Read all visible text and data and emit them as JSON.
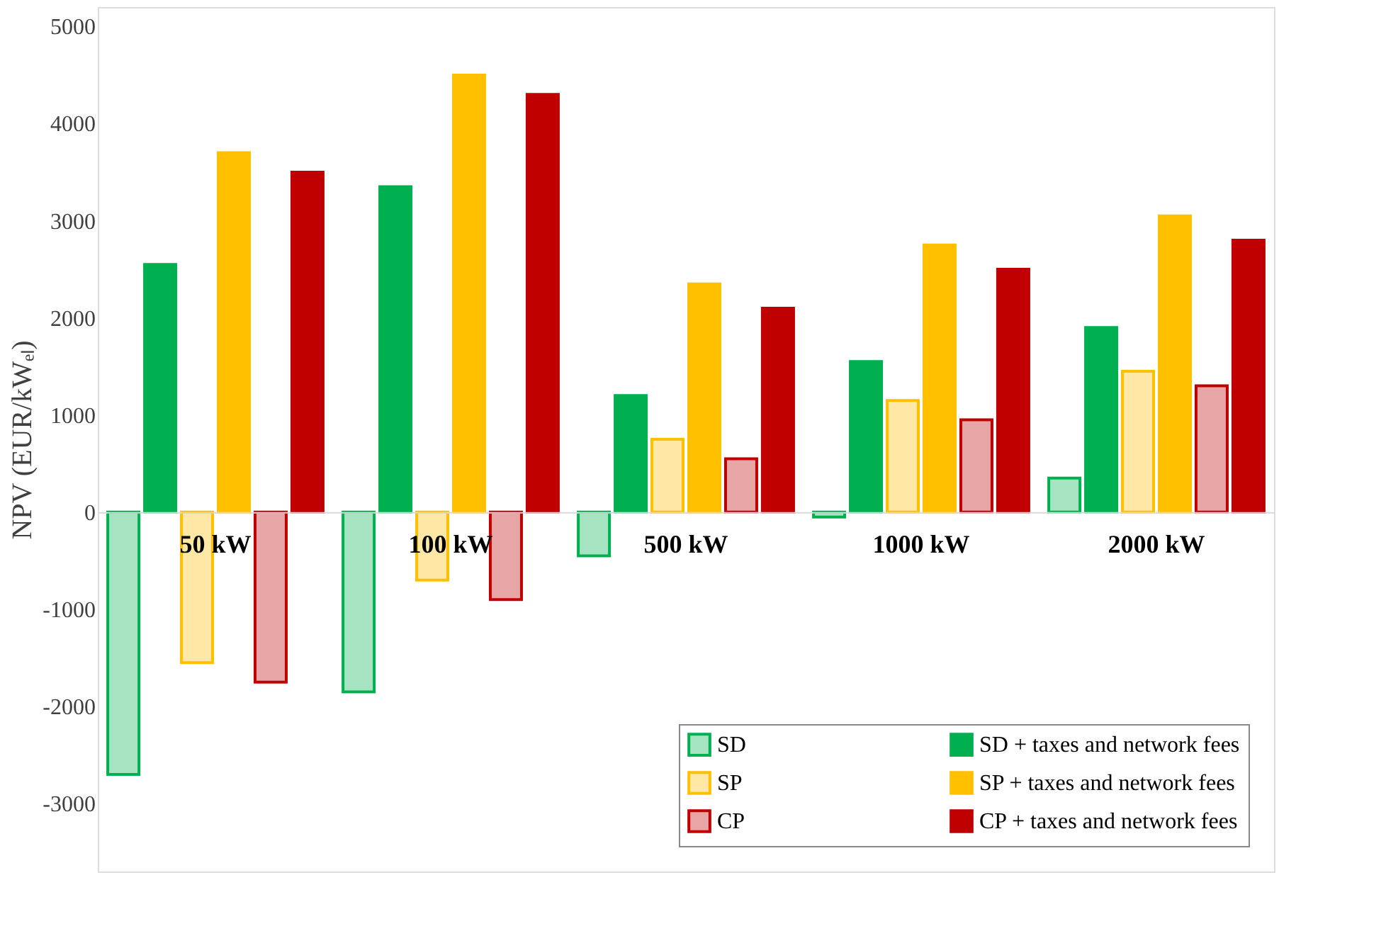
{
  "chart_data": {
    "type": "bar",
    "ylabel": "NPV (EUR/kWₑₗ)",
    "categories": [
      "50 kW",
      "100 kW",
      "500 kW",
      "1000 kW",
      "2000 kW"
    ],
    "series": [
      {
        "name": "SD",
        "color": "#00b050",
        "values": [
          -2700,
          -1850,
          -450,
          -50,
          350
        ]
      },
      {
        "name": "SD + taxes and network fees",
        "color": "#00b050",
        "values": [
          2550,
          3350,
          1200,
          1550,
          1900
        ]
      },
      {
        "name": "SP",
        "color": "#ffc000",
        "values": [
          -1550,
          -700,
          750,
          1150,
          1450
        ]
      },
      {
        "name": "SP + taxes and network fees",
        "color": "#ffc000",
        "values": [
          3700,
          4500,
          2350,
          2750,
          3050
        ]
      },
      {
        "name": "CP",
        "color": "#c00000",
        "values": [
          -1750,
          -900,
          550,
          950,
          1300
        ]
      },
      {
        "name": "CP + taxes and network fees",
        "color": "#c00000",
        "values": [
          3500,
          4300,
          2100,
          2500,
          2800
        ]
      }
    ],
    "ylim": [
      -3700,
      5200
    ],
    "yticks": [
      -3000,
      -2000,
      -1000,
      0,
      1000,
      2000,
      3000,
      4000,
      5000
    ],
    "grid": false,
    "legend": "bottom right"
  }
}
